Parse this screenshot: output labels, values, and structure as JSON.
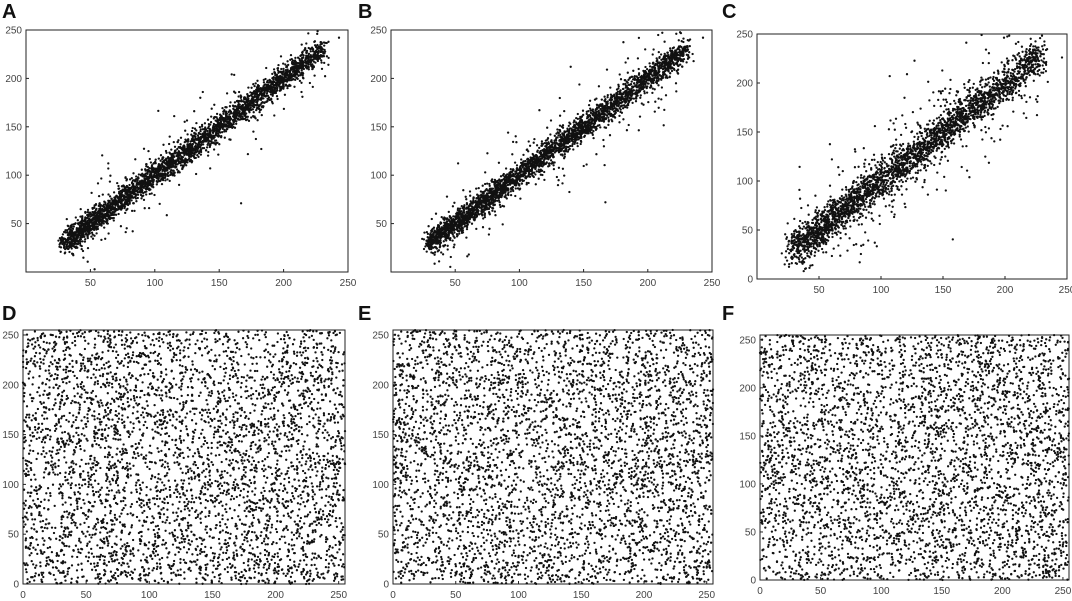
{
  "figure": {
    "panel_labels": [
      "A",
      "B",
      "C",
      "D",
      "E",
      "F"
    ],
    "colors": {
      "points": "#111111",
      "axes": "#222222",
      "ticks_text": "#444444",
      "background": "#ffffff"
    }
  },
  "chart_data": [
    {
      "panel": "A",
      "type": "scatter",
      "title": "",
      "xlabel": "",
      "ylabel": "",
      "xlim": [
        0,
        250
      ],
      "ylim": [
        0,
        250
      ],
      "xticks": [
        50,
        100,
        150,
        200,
        250
      ],
      "yticks": [
        50,
        100,
        150,
        200,
        250
      ],
      "grid": false,
      "legend": "none",
      "distribution": {
        "kind": "correlated",
        "n_points": 3200,
        "x_range": [
          30,
          230
        ],
        "slope": 1.0,
        "intercept": 0,
        "spread": 6,
        "outlier_spread": 22,
        "outlier_fraction": 0.07,
        "seed": 11
      },
      "notable_points": [
        {
          "x": 243,
          "y": 242
        },
        {
          "x": 167,
          "y": 71
        }
      ]
    },
    {
      "panel": "B",
      "type": "scatter",
      "title": "",
      "xlabel": "",
      "ylabel": "",
      "xlim": [
        0,
        250
      ],
      "ylim": [
        0,
        250
      ],
      "xticks": [
        50,
        100,
        150,
        200,
        250
      ],
      "yticks": [
        50,
        100,
        150,
        200,
        250
      ],
      "grid": false,
      "legend": "none",
      "distribution": {
        "kind": "correlated",
        "n_points": 3200,
        "x_range": [
          30,
          230
        ],
        "slope": 1.0,
        "intercept": 0,
        "spread": 6,
        "outlier_spread": 22,
        "outlier_fraction": 0.07,
        "seed": 23
      },
      "notable_points": [
        {
          "x": 243,
          "y": 242
        },
        {
          "x": 167,
          "y": 72
        }
      ]
    },
    {
      "panel": "C",
      "type": "scatter",
      "title": "",
      "xlabel": "",
      "ylabel": "",
      "xlim": [
        0,
        250
      ],
      "ylim": [
        0,
        250
      ],
      "xticks": [
        50,
        100,
        150,
        200,
        250
      ],
      "yticks": [
        0,
        50,
        100,
        150,
        200,
        250
      ],
      "grid": false,
      "legend": "none",
      "distribution": {
        "kind": "correlated",
        "n_points": 3000,
        "x_range": [
          30,
          230
        ],
        "slope": 1.0,
        "intercept": 0,
        "spread": 9,
        "outlier_spread": 32,
        "outlier_fraction": 0.12,
        "seed": 37
      },
      "notable_points": [
        {
          "x": 246,
          "y": 226
        },
        {
          "x": 107,
          "y": 207
        },
        {
          "x": 121,
          "y": 209
        }
      ]
    },
    {
      "panel": "D",
      "type": "scatter",
      "title": "",
      "xlabel": "",
      "ylabel": "",
      "xlim": [
        0,
        255
      ],
      "ylim": [
        0,
        255
      ],
      "xticks": [
        0,
        50,
        100,
        150,
        200,
        250
      ],
      "yticks": [
        0,
        50,
        100,
        150,
        200,
        250
      ],
      "grid": false,
      "legend": "none",
      "distribution": {
        "kind": "uniform",
        "n_points": 4200,
        "x_range": [
          0,
          255
        ],
        "y_range": [
          0,
          255
        ],
        "seed": 41
      }
    },
    {
      "panel": "E",
      "type": "scatter",
      "title": "",
      "xlabel": "",
      "ylabel": "",
      "xlim": [
        0,
        255
      ],
      "ylim": [
        0,
        255
      ],
      "xticks": [
        0,
        50,
        100,
        150,
        200,
        250
      ],
      "yticks": [
        0,
        50,
        100,
        150,
        200,
        250
      ],
      "grid": false,
      "legend": "none",
      "distribution": {
        "kind": "uniform",
        "n_points": 4200,
        "x_range": [
          0,
          255
        ],
        "y_range": [
          0,
          255
        ],
        "seed": 53
      }
    },
    {
      "panel": "F",
      "type": "scatter",
      "title": "",
      "xlabel": "",
      "ylabel": "",
      "xlim": [
        0,
        255
      ],
      "ylim": [
        0,
        255
      ],
      "xticks": [
        0,
        50,
        100,
        150,
        200,
        250
      ],
      "yticks": [
        0,
        50,
        100,
        150,
        200,
        250
      ],
      "grid": false,
      "legend": "none",
      "distribution": {
        "kind": "uniform",
        "n_points": 4000,
        "x_range": [
          0,
          255
        ],
        "y_range": [
          0,
          255
        ],
        "seed": 67
      }
    }
  ]
}
